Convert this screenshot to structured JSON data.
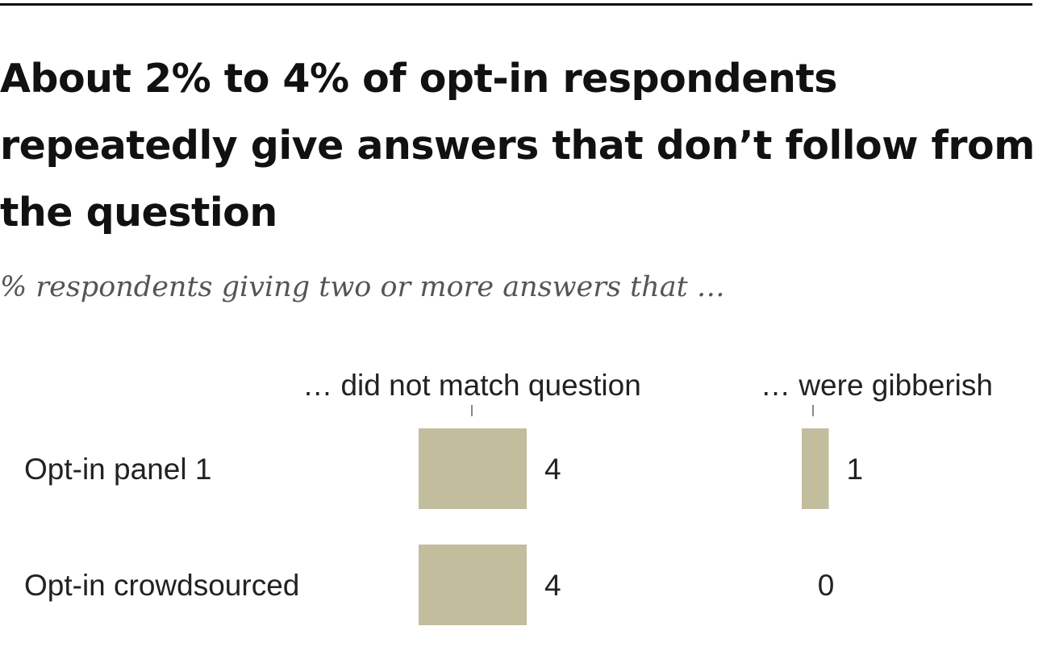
{
  "title": "About 2% to 4% of opt-in respondents repeatedly give answers that don’t follow from the question",
  "subtitle": "% respondents giving two or more answers that …",
  "colors": {
    "bar": "#c2bd9d",
    "rule": "#111111",
    "text": "#222222",
    "subtitle": "#555555",
    "tick": "#888888"
  },
  "chart_data": {
    "type": "bar",
    "orientation": "horizontal",
    "categories": [
      "Opt-in panel 1",
      "Opt-in crowdsourced"
    ],
    "series": [
      {
        "name": "… did not match question",
        "values": [
          4,
          4
        ]
      },
      {
        "name": "… were gibberish",
        "values": [
          1,
          0
        ]
      }
    ],
    "value_labels": [
      [
        "4",
        "4"
      ],
      [
        "1",
        "0"
      ]
    ],
    "grid": false,
    "legend": "column headers"
  }
}
